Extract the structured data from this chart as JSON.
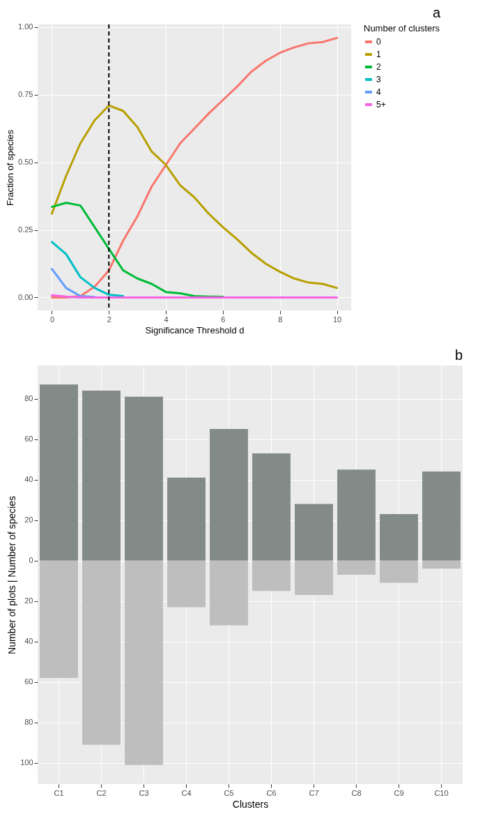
{
  "chart_data": [
    {
      "type": "line",
      "xlabel": "Significance Threshold d",
      "ylabel": "Fraction of species",
      "legend_title": "Number of clusters",
      "legend": "right",
      "grid": true,
      "annotations": [
        "a"
      ],
      "x": [
        0,
        0.5,
        1,
        1.5,
        2,
        2.5,
        3,
        3.5,
        4,
        4.5,
        5,
        5.5,
        6,
        6.5,
        7,
        7.5,
        8,
        8.5,
        9,
        9.5,
        10
      ],
      "xlim": [
        -0.5,
        10.5
      ],
      "xticks": [
        0,
        2,
        4,
        6,
        8,
        10
      ],
      "ylim": [
        -0.048,
        1.01
      ],
      "yticks": [
        {
          "value": 0,
          "label": "0.00"
        },
        {
          "value": 0.25,
          "label": "0.25"
        },
        {
          "value": 0.5,
          "label": "0.50"
        },
        {
          "value": 0.75,
          "label": "0.75"
        },
        {
          "value": 1,
          "label": "1.00"
        }
      ],
      "ref_lines": [
        {
          "axis": "x",
          "value": 2,
          "color": "#000000",
          "line_style": "dashed"
        }
      ],
      "series": [
        {
          "name": "0",
          "color": "#f8766d",
          "values": [
            0,
            0,
            0.005,
            0.04,
            0.1,
            0.21,
            0.3,
            0.41,
            0.49,
            0.57,
            0.625,
            0.68,
            0.73,
            0.78,
            0.835,
            0.875,
            0.905,
            0.925,
            0.94,
            0.945,
            0.96
          ]
        },
        {
          "name": "1",
          "color": "#b79f00",
          "values": [
            0.31,
            0.45,
            0.57,
            0.655,
            0.71,
            0.69,
            0.63,
            0.54,
            0.49,
            0.415,
            0.37,
            0.31,
            0.26,
            0.215,
            0.165,
            0.125,
            0.095,
            0.07,
            0.055,
            0.05,
            0.035
          ]
        },
        {
          "name": "2",
          "color": "#00ba38",
          "values": [
            0.335,
            0.35,
            0.34,
            0.26,
            0.18,
            0.1,
            0.07,
            0.05,
            0.02,
            0.015,
            0.005,
            0.003,
            0.002,
            null,
            null,
            null,
            null,
            null,
            null,
            null,
            null
          ]
        },
        {
          "name": "3",
          "color": "#00bfc4",
          "values": [
            0.205,
            0.16,
            0.075,
            0.035,
            0.01,
            0.005,
            null,
            null,
            null,
            null,
            null,
            null,
            null,
            null,
            null,
            null,
            null,
            null,
            null,
            null,
            null
          ]
        },
        {
          "name": "4",
          "color": "#619cff",
          "values": [
            0.105,
            0.035,
            0.005,
            0.002,
            null,
            null,
            null,
            null,
            null,
            null,
            null,
            null,
            null,
            null,
            null,
            null,
            null,
            null,
            null,
            null,
            null
          ]
        },
        {
          "name": "5+",
          "color": "#f564e3",
          "values": [
            0.008,
            0.003,
            0,
            0,
            0,
            0,
            0,
            0,
            0,
            0,
            0,
            0,
            0,
            0,
            0,
            0,
            0,
            0,
            0,
            0,
            0
          ]
        }
      ]
    },
    {
      "type": "bar",
      "stacked": true,
      "xlabel": "Clusters",
      "ylabel": "Number of plots | Number of species",
      "grid": true,
      "legend": false,
      "annotations": [
        "b"
      ],
      "categories": [
        "C1",
        "C2",
        "C3",
        "C4",
        "C5",
        "C6",
        "C7",
        "C8",
        "C9",
        "C10"
      ],
      "ylim": [
        -110.4,
        96.4
      ],
      "yticks": [
        {
          "value": -100,
          "label": "100"
        },
        {
          "value": -80,
          "label": "80"
        },
        {
          "value": -60,
          "label": "60"
        },
        {
          "value": -40,
          "label": "40"
        },
        {
          "value": -20,
          "label": "20"
        },
        0,
        20,
        40,
        60,
        80
      ],
      "series": [
        {
          "color": "#838b89",
          "values": [
            87,
            84,
            81,
            41,
            65,
            53,
            28,
            45,
            23,
            44
          ]
        },
        {
          "color": "#bebebe",
          "values": [
            -58,
            -91,
            -101,
            -23,
            -32,
            -15,
            -17,
            -7,
            -11,
            -4
          ]
        }
      ]
    }
  ]
}
